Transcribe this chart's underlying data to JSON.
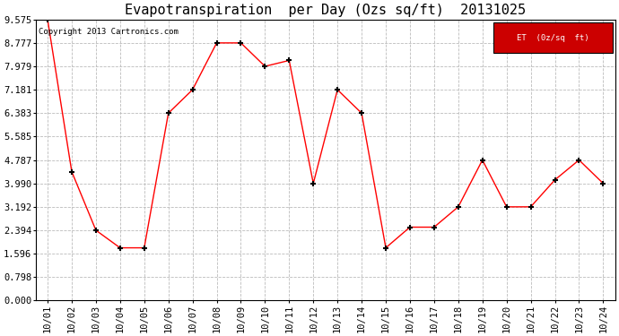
{
  "title": "Evapotranspiration  per Day (Ozs sq/ft)  20131025",
  "copyright": "Copyright 2013 Cartronics.com",
  "legend_label": "ET  (0z/sq  ft)",
  "x_labels": [
    "10/01",
    "10/02",
    "10/03",
    "10/04",
    "10/05",
    "10/06",
    "10/07",
    "10/08",
    "10/09",
    "10/10",
    "10/11",
    "10/12",
    "10/13",
    "10/14",
    "10/15",
    "10/16",
    "10/17",
    "10/18",
    "10/19",
    "10/20",
    "10/21",
    "10/22",
    "10/23",
    "10/24"
  ],
  "y_values": [
    9.575,
    4.39,
    2.394,
    1.796,
    1.796,
    6.383,
    7.181,
    8.777,
    8.777,
    7.979,
    8.179,
    3.99,
    7.181,
    6.383,
    1.796,
    2.5,
    2.5,
    3.192,
    4.787,
    3.192,
    3.192,
    4.11,
    4.787,
    3.99
  ],
  "y_tick_values": [
    0.0,
    0.798,
    1.596,
    2.394,
    3.192,
    3.99,
    4.787,
    5.585,
    6.383,
    7.181,
    7.979,
    8.777,
    9.575
  ],
  "ylim": [
    0.0,
    9.575
  ],
  "line_color": "red",
  "marker": "+",
  "marker_color": "black",
  "marker_size": 5,
  "marker_linewidth": 1.5,
  "line_width": 1.0,
  "bg_color": "#ffffff",
  "grid_color": "#bbbbbb",
  "legend_bg": "#cc0000",
  "legend_text_color": "#ffffff",
  "title_fontsize": 11,
  "tick_fontsize": 7.5,
  "copyright_fontsize": 6.5
}
